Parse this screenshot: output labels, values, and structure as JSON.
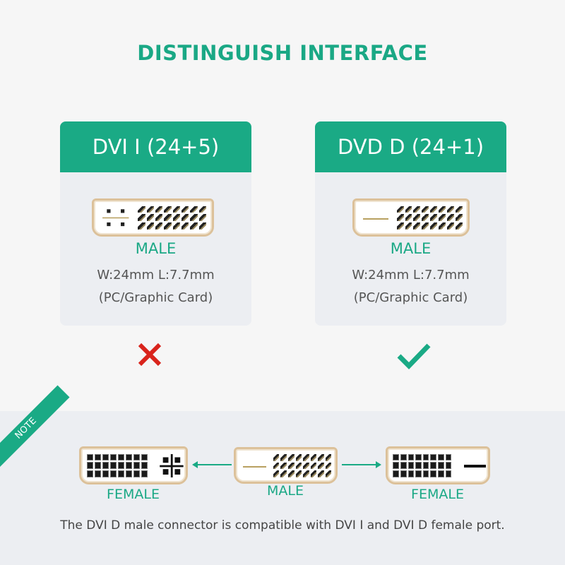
{
  "title": "DISTINGUISH INTERFACE",
  "cards": [
    {
      "header": "DVI I (24+5)",
      "connector": "male-dvi-i",
      "label": "MALE",
      "size": "W:24mm L:7.7mm",
      "usage": "(PC/Graphic Card)",
      "verdict": "incorrect",
      "verdict_icon": "cross-icon",
      "verdict_color": "#d9241c"
    },
    {
      "header": "DVD D (24+1)",
      "connector": "male-dvi-d",
      "label": "MALE",
      "size": "W:24mm L:7.7mm",
      "usage": "(PC/Graphic Card)",
      "verdict": "correct",
      "verdict_icon": "check-icon",
      "verdict_color": "#1aaa85"
    }
  ],
  "note": {
    "ribbon": "NOTE",
    "left_label": "FEMALE",
    "center_label": "MALE",
    "right_label": "FEMALE",
    "text": "The DVI D male connector is compatible with DVI I and DVI D female port."
  },
  "colors": {
    "accent": "#1aaa85",
    "background": "#f6f6f6",
    "card": "#eceef2"
  }
}
